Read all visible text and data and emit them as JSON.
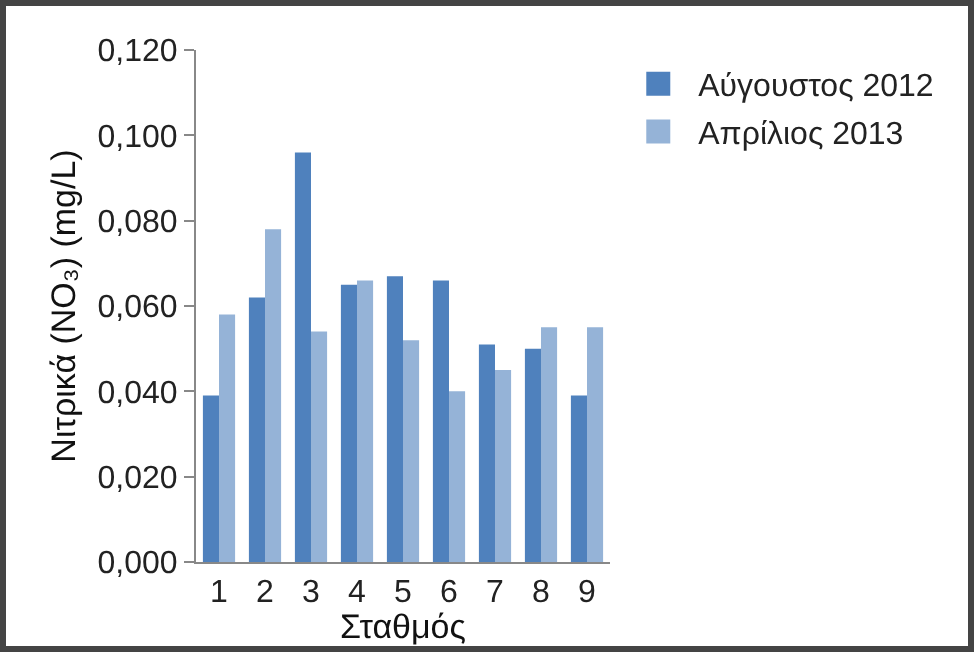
{
  "chart_data": {
    "type": "bar",
    "xlabel": "Σταθμός",
    "ylabel": "Νιτρικά (NO₃) (mg/L)",
    "categories": [
      "1",
      "2",
      "3",
      "4",
      "5",
      "6",
      "7",
      "8",
      "9"
    ],
    "series": [
      {
        "name": "Αύγουστος 2012",
        "color": "#4f81bd",
        "values": [
          0.039,
          0.062,
          0.096,
          0.065,
          0.067,
          0.066,
          0.051,
          0.05,
          0.039
        ]
      },
      {
        "name": "Απρίλιος 2013",
        "color": "#95b3d7",
        "values": [
          0.058,
          0.078,
          0.054,
          0.066,
          0.052,
          0.04,
          0.045,
          0.055,
          0.055
        ]
      }
    ],
    "ylim": [
      0,
      0.12
    ],
    "yticks": [
      {
        "value": 0,
        "label": "0,000"
      },
      {
        "value": 0.02,
        "label": "0,020"
      },
      {
        "value": 0.04,
        "label": "0,040"
      },
      {
        "value": 0.06,
        "label": "0,060"
      },
      {
        "value": 0.08,
        "label": "0,080"
      },
      {
        "value": 0.1,
        "label": "0,100"
      },
      {
        "value": 0.12,
        "label": "0,120"
      }
    ],
    "grid": false,
    "legend": "top right"
  }
}
